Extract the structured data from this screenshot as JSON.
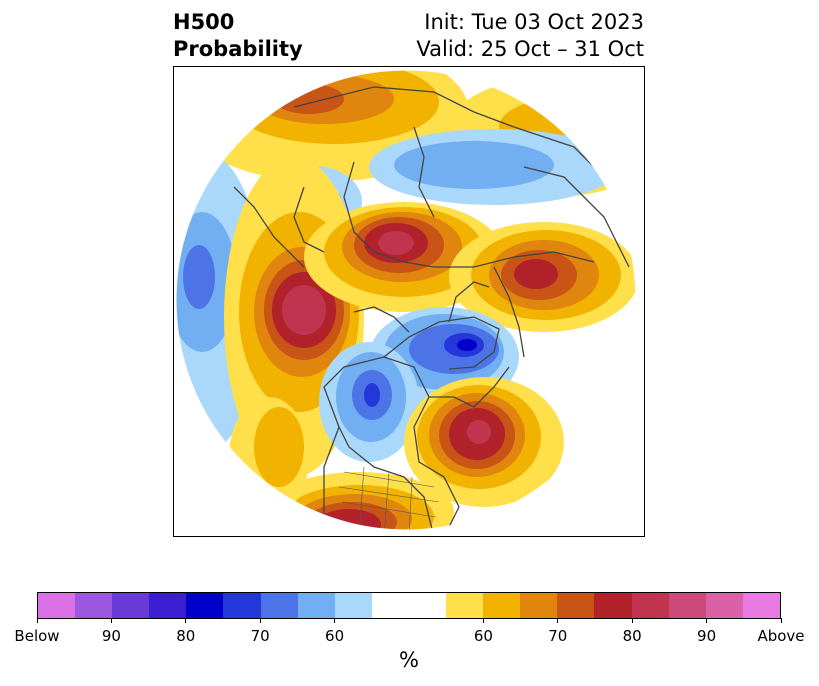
{
  "title": {
    "left_line1": "H500",
    "left_line2": "Probability",
    "right_line1": "Init: Tue 03 Oct 2023",
    "right_line2": "Valid: 25 Oct – 31 Oct"
  },
  "map": {
    "projection": "north-polar-stereographic",
    "region": "Northern Hemisphere",
    "features": [
      {
        "name": "above-center-alaska-eastern-siberia",
        "category": "Above",
        "peak_percent": 80
      },
      {
        "name": "above-center-north-pacific",
        "category": "Above",
        "peak_percent": 85
      },
      {
        "name": "above-center-eastern-canada-greenland",
        "category": "Above",
        "peak_percent": 85
      },
      {
        "name": "above-center-scandinavia-russia",
        "category": "Above",
        "peak_percent": 80
      },
      {
        "name": "above-center-north-atlantic",
        "category": "Above",
        "peak_percent": 70
      },
      {
        "name": "above-center-southwestern-united-states",
        "category": "Above",
        "peak_percent": 75
      },
      {
        "name": "below-center-western-canada",
        "category": "Below",
        "peak_percent": 85
      },
      {
        "name": "below-center-arctic-canada",
        "category": "Below",
        "peak_percent": 85
      },
      {
        "name": "below-center-north-africa",
        "category": "Below",
        "peak_percent": 65
      },
      {
        "name": "below-center-central-asia",
        "category": "Below",
        "peak_percent": 60
      },
      {
        "name": "below-center-india",
        "category": "Below",
        "peak_percent": 65
      }
    ]
  },
  "colorbar": {
    "unit": "%",
    "colors": [
      "#da72e6",
      "#9a58e0",
      "#6a3ad6",
      "#3a1ed2",
      "#0000cc",
      "#2437d8",
      "#4c74e6",
      "#72aef2",
      "#aad8fa",
      "#ffffff",
      "#ffffff",
      "#ffdf4a",
      "#f2b200",
      "#e0860e",
      "#c85416",
      "#b2222a",
      "#c03450",
      "#cc4a7a",
      "#d962a6",
      "#e87ae2"
    ],
    "tick_labels": [
      "Below",
      "90",
      "80",
      "70",
      "60",
      "60",
      "70",
      "80",
      "90",
      "Above"
    ]
  }
}
